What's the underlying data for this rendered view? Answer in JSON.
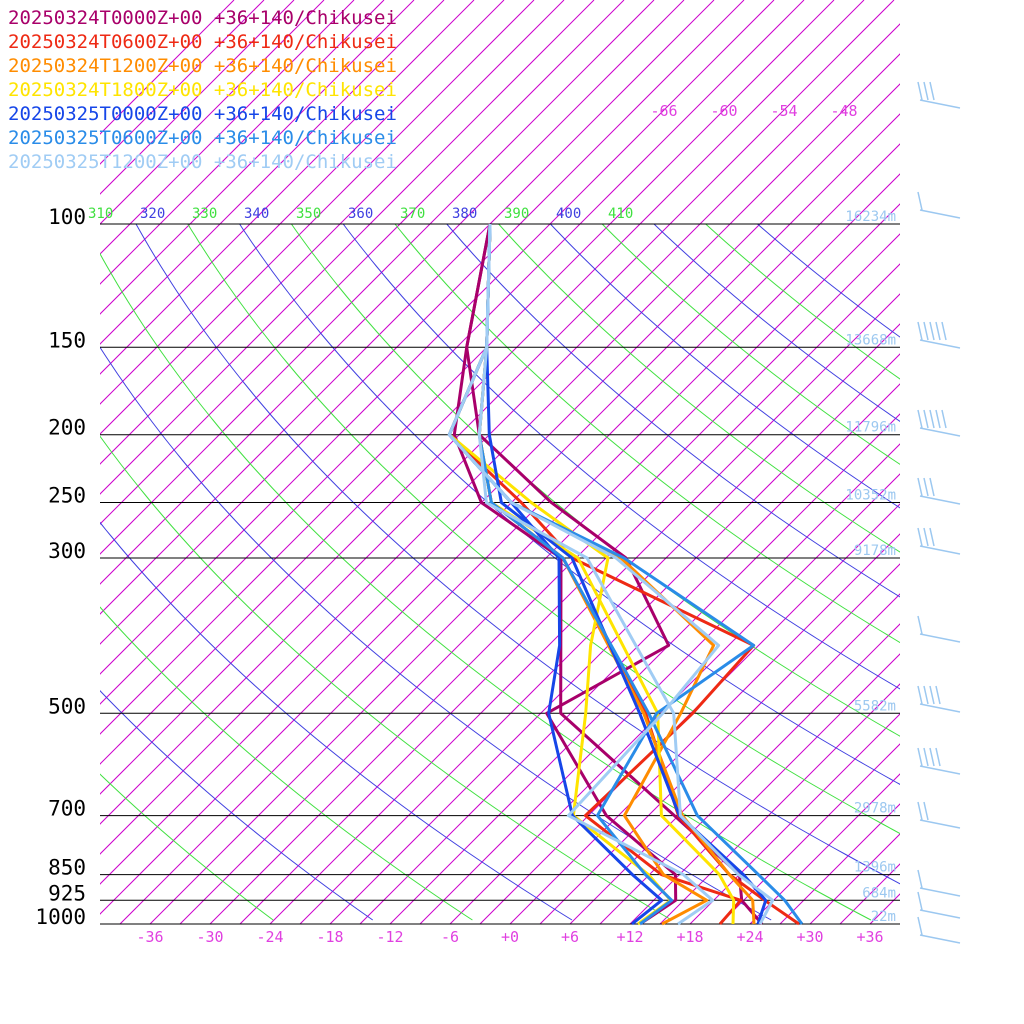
{
  "chart_data": {
    "type": "line",
    "title": "",
    "xlabel": "",
    "ylabel": "",
    "x_unit": "temperature (°C)",
    "y_unit": "pressure (hPa)",
    "xlim": [
      -41,
      39
    ],
    "ylim": [
      1000,
      100
    ],
    "pressure_levels": [
      100,
      150,
      200,
      250,
      300,
      500,
      700,
      850,
      925,
      1000
    ],
    "temperature_ticks": [
      -36,
      -30,
      -24,
      -18,
      -12,
      -6,
      0,
      6,
      12,
      18,
      24,
      30,
      36
    ],
    "temperature_tick_labels": [
      "-36",
      "-30",
      "-24",
      "-18",
      "-12",
      "-6",
      "+0",
      "+6",
      "+12",
      "+18",
      "+24",
      "+30",
      "+36"
    ],
    "upper_temp_labels": [
      "-66",
      "-60",
      "-54",
      "-48"
    ],
    "theta_labels": [
      {
        "text": "310",
        "color": "#40e040"
      },
      {
        "text": "320",
        "color": "#4040e0"
      },
      {
        "text": "330",
        "color": "#40e040"
      },
      {
        "text": "340",
        "color": "#4040e0"
      },
      {
        "text": "350",
        "color": "#40e040"
      },
      {
        "text": "360",
        "color": "#4040e0"
      },
      {
        "text": "370",
        "color": "#40e040"
      },
      {
        "text": "380",
        "color": "#4040e0"
      },
      {
        "text": "390",
        "color": "#40e040"
      },
      {
        "text": "400",
        "color": "#4040e0"
      },
      {
        "text": "410",
        "color": "#40e040"
      }
    ],
    "height_labels": [
      {
        "p": 100,
        "text": "16234m"
      },
      {
        "p": 150,
        "text": "13668m"
      },
      {
        "p": 200,
        "text": "11796m"
      },
      {
        "p": 250,
        "text": "10352m"
      },
      {
        "p": 300,
        "text": "9178m"
      },
      {
        "p": 500,
        "text": "5582m"
      },
      {
        "p": 700,
        "text": "2978m"
      },
      {
        "p": 850,
        "text": "1396m"
      },
      {
        "p": 925,
        "text": "684m"
      },
      {
        "p": 1000,
        "text": "22m"
      }
    ],
    "series": [
      {
        "name": "20250324T0000Z+00 +36+140/Chikusei",
        "color": "#a8006a",
        "temperature": [
          [
            1000,
            25.2
          ],
          [
            925,
            20.8
          ],
          [
            850,
            18.0
          ],
          [
            700,
            5.6
          ],
          [
            500,
            -16.0
          ],
          [
            300,
            -31.5
          ],
          [
            250,
            -45.0
          ],
          [
            200,
            -54.5
          ],
          [
            150,
            -62.0
          ],
          [
            100,
            -72.0
          ]
        ],
        "dewpoint": [
          [
            1000,
            13.0
          ],
          [
            925,
            14.2
          ],
          [
            850,
            11.6
          ],
          [
            700,
            -1.2
          ],
          [
            500,
            -17.4
          ],
          [
            400,
            -12.0
          ],
          [
            300,
            -25.0
          ],
          [
            250,
            -38.0
          ],
          [
            200,
            -52.0
          ],
          [
            150,
            -62.0
          ],
          [
            100,
            -72.0
          ]
        ]
      },
      {
        "name": "20250324T0600Z+00 +36+140/Chikusei",
        "color": "#ee2a14",
        "temperature": [
          [
            1000,
            28.9
          ],
          [
            925,
            23.1
          ],
          [
            850,
            17.0
          ],
          [
            700,
            6.0
          ],
          [
            500,
            -7.5
          ],
          [
            300,
            -31.3
          ],
          [
            250,
            -44.0
          ],
          [
            200,
            -52.0
          ],
          [
            150,
            -60.0
          ],
          [
            100,
            -72.0
          ]
        ],
        "dewpoint": [
          [
            1000,
            21.0
          ],
          [
            925,
            20.7
          ],
          [
            850,
            10.2
          ],
          [
            700,
            -3.3
          ],
          [
            500,
            -2.8
          ],
          [
            400,
            -3.5
          ],
          [
            300,
            -30.4
          ],
          [
            250,
            -41.0
          ],
          [
            200,
            -55.0
          ],
          [
            150,
            -60.0
          ],
          [
            100,
            -72.0
          ]
        ]
      },
      {
        "name": "20250324T1200Z+00 +36+140/Chikusei",
        "color": "#ff8c00",
        "temperature": [
          [
            1000,
            24.4
          ],
          [
            925,
            21.9
          ],
          [
            850,
            17.0
          ],
          [
            700,
            6.4
          ],
          [
            500,
            -7.7
          ],
          [
            300,
            -31.3
          ],
          [
            250,
            -44.0
          ],
          [
            200,
            -52.0
          ],
          [
            150,
            -60.0
          ],
          [
            100,
            -72.0
          ]
        ],
        "dewpoint": [
          [
            1000,
            15.2
          ],
          [
            925,
            17.3
          ],
          [
            850,
            10.4
          ],
          [
            700,
            0.6
          ],
          [
            500,
            -4.0
          ],
          [
            400,
            -7.5
          ],
          [
            300,
            -25.5
          ],
          [
            250,
            -42.0
          ],
          [
            200,
            -55.0
          ],
          [
            150,
            -60.0
          ],
          [
            100,
            -72.0
          ]
        ]
      },
      {
        "name": "20250324T1800Z+00 +36+140/Chikusei",
        "color": "#ffe400",
        "temperature": [
          [
            1000,
            22.3
          ],
          [
            925,
            20.0
          ],
          [
            850,
            16.0
          ],
          [
            700,
            4.3
          ],
          [
            500,
            -6.3
          ],
          [
            300,
            -29.8
          ],
          [
            250,
            -44.0
          ],
          [
            200,
            -52.0
          ],
          [
            150,
            -60.0
          ],
          [
            100,
            -72.0
          ]
        ],
        "dewpoint": [
          [
            1000,
            12.8
          ],
          [
            925,
            13.7
          ],
          [
            850,
            8.9
          ],
          [
            700,
            -4.5
          ],
          [
            500,
            -13.5
          ],
          [
            400,
            -19.8
          ],
          [
            300,
            -26.8
          ],
          [
            250,
            -40.0
          ],
          [
            200,
            -55.0
          ],
          [
            150,
            -60.0
          ],
          [
            100,
            -72.0
          ]
        ]
      },
      {
        "name": "20250325T0000Z+00 +36+140/Chikusei",
        "color": "#1646e8",
        "temperature": [
          [
            1000,
            24.8
          ],
          [
            925,
            23.2
          ],
          [
            850,
            18.4
          ],
          [
            700,
            6.1
          ],
          [
            500,
            -8.1
          ],
          [
            300,
            -30.4
          ],
          [
            250,
            -43.0
          ],
          [
            200,
            -51.0
          ],
          [
            150,
            -60.0
          ],
          [
            100,
            -72.0
          ]
        ],
        "dewpoint": [
          [
            1000,
            12.2
          ],
          [
            925,
            12.8
          ],
          [
            850,
            7.3
          ],
          [
            700,
            -4.6
          ],
          [
            500,
            -17.2
          ],
          [
            400,
            -22.9
          ],
          [
            300,
            -31.7
          ],
          [
            250,
            -42.0
          ],
          [
            200,
            -55.0
          ],
          [
            150,
            -60.0
          ],
          [
            100,
            -72.0
          ]
        ]
      },
      {
        "name": "20250325T0600Z+00 +36+140/Chikusei",
        "color": "#2a8ce8",
        "temperature": [
          [
            1000,
            29.2
          ],
          [
            925,
            25.1
          ],
          [
            850,
            19.9
          ],
          [
            700,
            7.9
          ],
          [
            500,
            -7.2
          ],
          [
            300,
            -31.3
          ],
          [
            250,
            -44.0
          ],
          [
            200,
            -52.0
          ],
          [
            150,
            -60.0
          ],
          [
            100,
            -72.0
          ]
        ],
        "dewpoint": [
          [
            1000,
            13.0
          ],
          [
            925,
            13.8
          ],
          [
            850,
            8.6
          ],
          [
            700,
            -2.1
          ],
          [
            500,
            -6.4
          ],
          [
            400,
            -3.5
          ],
          [
            300,
            -25.2
          ],
          [
            250,
            -42.0
          ],
          [
            200,
            -55.0
          ],
          [
            150,
            -60.0
          ],
          [
            100,
            -72.0
          ]
        ]
      },
      {
        "name": "20250325T1200Z+00 +36+140/Chikusei",
        "color": "#a0ccf4",
        "temperature": [
          [
            1000,
            25.0
          ],
          [
            925,
            23.9
          ],
          [
            850,
            17.9
          ],
          [
            700,
            6.2
          ],
          [
            500,
            -4.7
          ],
          [
            300,
            -28.9
          ],
          [
            250,
            -44.5
          ],
          [
            200,
            -52.0
          ],
          [
            150,
            -60.0
          ],
          [
            100,
            -72.0
          ]
        ],
        "dewpoint": [
          [
            1000,
            16.8
          ],
          [
            925,
            17.9
          ],
          [
            850,
            12.4
          ],
          [
            700,
            -5.0
          ],
          [
            500,
            -5.8
          ],
          [
            400,
            -7.0
          ],
          [
            300,
            -26.0
          ],
          [
            250,
            -42.0
          ],
          [
            200,
            -55.0
          ],
          [
            150,
            -60.0
          ],
          [
            100,
            -72.0
          ]
        ]
      }
    ],
    "grid": true,
    "legend_position": "top-left",
    "line_colors": {
      "isotherm": "#cc00cc",
      "dry_adiabat_green": "#40e040",
      "dry_adiabat_blue": "#4040e0",
      "pressure_line": "#000000",
      "wind_barb": "#9cc8f0"
    }
  }
}
